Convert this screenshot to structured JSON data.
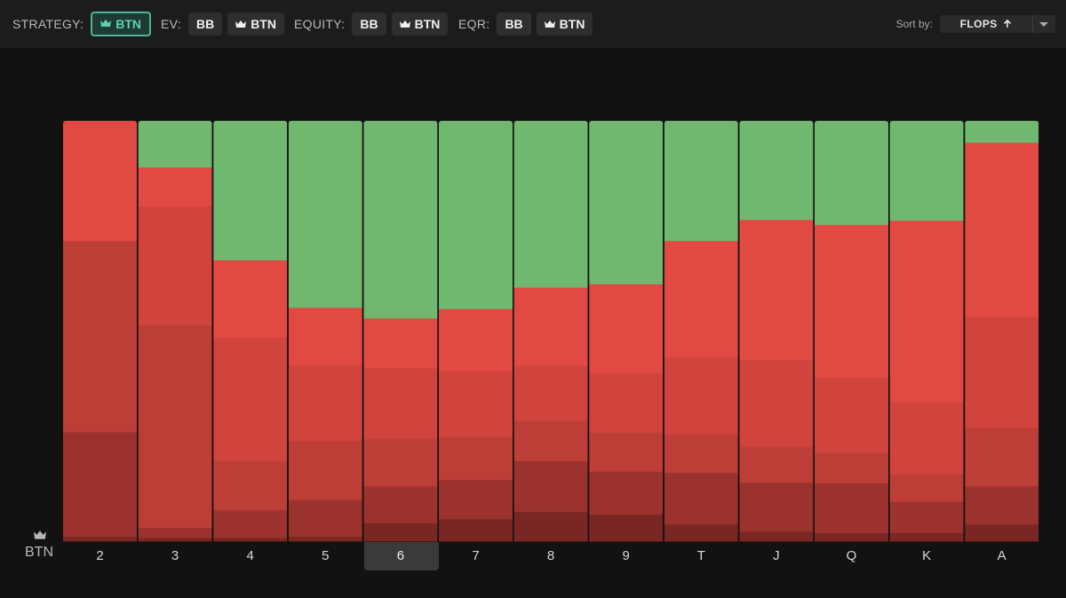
{
  "toolbar": {
    "strategy": {
      "label": "STRATEGY:",
      "buttons": [
        {
          "text": "BTN",
          "icon": "crown-icon",
          "active": true
        }
      ]
    },
    "ev": {
      "label": "EV:",
      "buttons": [
        {
          "text": "BB"
        },
        {
          "text": "BTN",
          "icon": "crown-icon"
        }
      ]
    },
    "equity": {
      "label": "EQUITY:",
      "buttons": [
        {
          "text": "BB"
        },
        {
          "text": "BTN",
          "icon": "crown-icon"
        }
      ]
    },
    "eqr": {
      "label": "EQR:",
      "buttons": [
        {
          "text": "BB"
        },
        {
          "text": "BTN",
          "icon": "crown-icon"
        }
      ]
    },
    "sort": {
      "label": "Sort by:",
      "value": "FLOPS",
      "direction_icon": "arrow-up-icon"
    }
  },
  "axis": {
    "player": "BTN",
    "player_icon": "crown-icon"
  },
  "colors": {
    "check": "#70b870",
    "bet_small": "#e04a42",
    "bet_medium": "#d1433d",
    "bet_large": "#bd3d37",
    "bet_xlarge": "#9c322d",
    "bet_allin": "#7a2622",
    "accent": "#4fb39a"
  },
  "chart_data": {
    "type": "stacked-bar",
    "categories": [
      "2",
      "3",
      "4",
      "5",
      "6",
      "7",
      "8",
      "9",
      "T",
      "J",
      "Q",
      "K",
      "A"
    ],
    "selected_category": "6",
    "y_range": [
      0,
      100
    ],
    "series_order_bottom_to_top": [
      "bet_allin",
      "bet_xlarge",
      "bet_large",
      "bet_medium",
      "bet_small",
      "check"
    ],
    "values_percent": [
      [
        1.1,
        24.9,
        45.5,
        0,
        28.5,
        0
      ],
      [
        0.8,
        2.4,
        48.2,
        28.2,
        9.3,
        11.0
      ],
      [
        0.8,
        6.6,
        11.7,
        29.4,
        18.4,
        33.1
      ],
      [
        1.1,
        8.8,
        14.0,
        18.0,
        13.7,
        44.4
      ],
      [
        4.3,
        8.8,
        11.2,
        16.9,
        11.8,
        46.9
      ],
      [
        5.3,
        9.3,
        10.2,
        15.7,
        14.8,
        44.7
      ],
      [
        7.0,
        12.1,
        9.6,
        13.1,
        18.6,
        39.6
      ],
      [
        6.4,
        10.2,
        9.3,
        14.2,
        21.1,
        38.8
      ],
      [
        4.2,
        12.7,
        9.5,
        19.1,
        28.7,
        29.6
      ],
      [
        2.5,
        12.2,
        8.9,
        21.8,
        35.1,
        24.7
      ],
      [
        2.1,
        12.7,
        7.6,
        19.2,
        38.9,
        26.4
      ],
      [
        2.1,
        7.6,
        6.8,
        17.8,
        44.6,
        24.5
      ],
      [
        4.0,
        9.1,
        13.9,
        26.4,
        41.4,
        5.1
      ]
    ]
  }
}
